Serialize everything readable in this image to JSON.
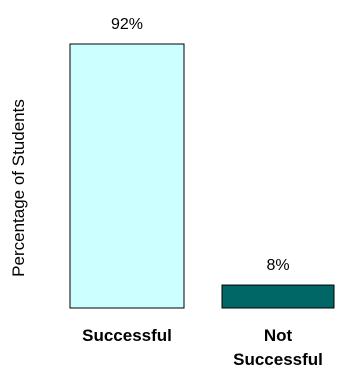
{
  "chart_data": {
    "type": "bar",
    "categories": [
      "Successful",
      "Not Successful"
    ],
    "category_lines": [
      [
        "Successful"
      ],
      [
        "Not",
        "Successful"
      ]
    ],
    "values": [
      92,
      8
    ],
    "data_labels": [
      "92%",
      "8%"
    ],
    "title": "",
    "xlabel": "",
    "ylabel": "Percentage of Students",
    "ylim": [
      0,
      100
    ],
    "grid": false,
    "legend": "none",
    "bar_colors": [
      "#ccffff",
      "#006666"
    ],
    "bar_edge_color": "#000000"
  }
}
